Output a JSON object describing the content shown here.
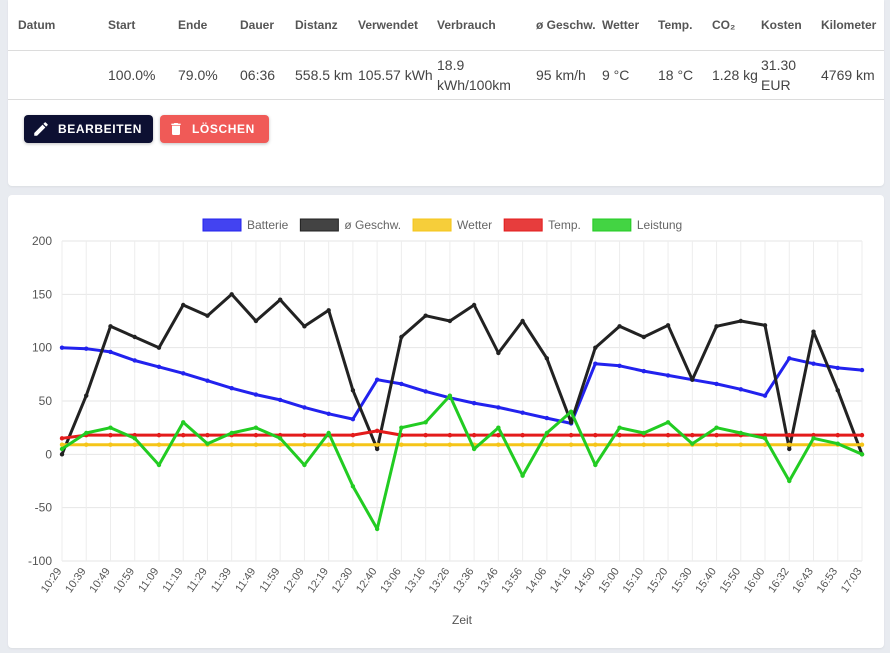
{
  "summary_table": {
    "headers": [
      "Datum",
      "Start",
      "Ende",
      "Dauer",
      "Distanz",
      "Verwendet",
      "Verbrauch",
      "ø Geschw.",
      "Wetter",
      "Temp.",
      "CO₂",
      "Kosten",
      "Kilometer"
    ],
    "row": [
      "",
      "100.0%",
      "79.0%",
      "06:36",
      "558.5 km",
      "105.57 kWh",
      "18.9 kWh/100km",
      "95 km/h",
      "9 °C",
      "18 °C",
      "1.28 kg",
      "31.30 EUR",
      "4769 km"
    ]
  },
  "actions": {
    "edit_label": "BEARBEITEN",
    "delete_label": "LÖSCHEN",
    "edit_icon": "pencil-icon",
    "delete_icon": "trash-icon"
  },
  "colors": {
    "edit_button": "#0d1032",
    "delete_button": "#f05a57"
  },
  "chart_data": {
    "type": "line",
    "xlabel": "Zeit",
    "ylabel": "",
    "ylim": [
      -100,
      200
    ],
    "yticks": [
      -100,
      -50,
      0,
      50,
      100,
      150,
      200
    ],
    "grid": true,
    "legend_position": "top",
    "x": [
      "10:29",
      "10:39",
      "10:49",
      "10:59",
      "11:09",
      "11:19",
      "11:29",
      "11:39",
      "11:49",
      "11:59",
      "12:09",
      "12:19",
      "12:30",
      "12:40",
      "13:06",
      "13:16",
      "13:26",
      "13:36",
      "13:46",
      "13:56",
      "14:06",
      "14:16",
      "14:50",
      "15:00",
      "15:10",
      "15:20",
      "15:30",
      "15:40",
      "15:50",
      "16:00",
      "16:32",
      "16:43",
      "16:53",
      "17:03"
    ],
    "series": [
      {
        "name": "Batterie",
        "color": "#2222ee",
        "values": [
          100,
          99,
          96,
          88,
          82,
          76,
          69,
          62,
          56,
          51,
          44,
          38,
          33,
          70,
          66,
          59,
          53,
          48,
          44,
          39,
          34,
          29,
          85,
          83,
          78,
          74,
          70,
          66,
          61,
          55,
          90,
          85,
          81,
          79
        ]
      },
      {
        "name": "ø Geschw.",
        "color": "#222222",
        "values": [
          0,
          55,
          120,
          110,
          100,
          140,
          130,
          150,
          125,
          145,
          120,
          135,
          60,
          5,
          110,
          130,
          125,
          140,
          95,
          125,
          90,
          30,
          100,
          120,
          110,
          121,
          70,
          120,
          125,
          121,
          5,
          115,
          60,
          0
        ]
      },
      {
        "name": "Wetter",
        "color": "#f5c518",
        "values": [
          9,
          9,
          9,
          9,
          9,
          9,
          9,
          9,
          9,
          9,
          9,
          9,
          9,
          9,
          9,
          9,
          9,
          9,
          9,
          9,
          9,
          9,
          9,
          9,
          9,
          9,
          9,
          9,
          9,
          9,
          9,
          9,
          9,
          9
        ]
      },
      {
        "name": "Temp.",
        "color": "#e31b1b",
        "values": [
          15,
          18,
          18,
          18,
          18,
          18,
          18,
          18,
          18,
          18,
          18,
          18,
          18,
          22,
          18,
          18,
          18,
          18,
          18,
          18,
          18,
          18,
          18,
          18,
          18,
          18,
          18,
          18,
          18,
          18,
          18,
          18,
          18,
          18
        ]
      },
      {
        "name": "Leistung",
        "color": "#22cc22",
        "values": [
          5,
          20,
          25,
          15,
          -10,
          30,
          10,
          20,
          25,
          15,
          -10,
          20,
          -30,
          -70,
          25,
          30,
          55,
          5,
          25,
          -20,
          20,
          40,
          -10,
          25,
          20,
          30,
          10,
          25,
          20,
          15,
          -25,
          15,
          10,
          0
        ]
      }
    ]
  }
}
